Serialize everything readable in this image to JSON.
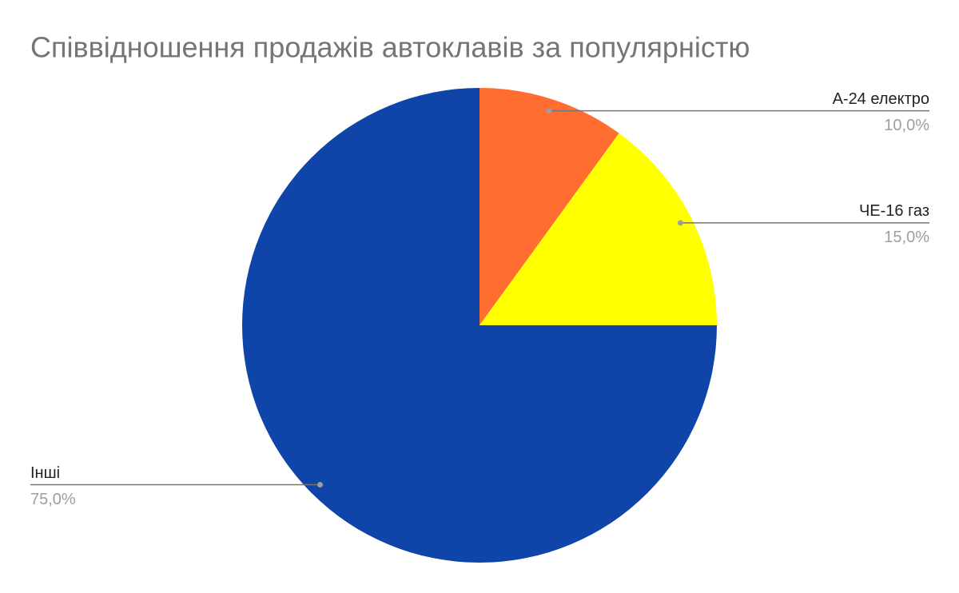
{
  "chart_data": {
    "type": "pie",
    "title": "Співвідношення продажів автоклавів за популярністю",
    "categories": [
      "А-24 електро",
      "ЧЕ-16 газ",
      "Інші"
    ],
    "values": [
      10,
      15,
      75
    ],
    "value_labels": [
      "10,0%",
      "15,0%",
      "75,0%"
    ],
    "colors": [
      "#ff6d31",
      "#ffff00",
      "#0f44a8"
    ]
  }
}
